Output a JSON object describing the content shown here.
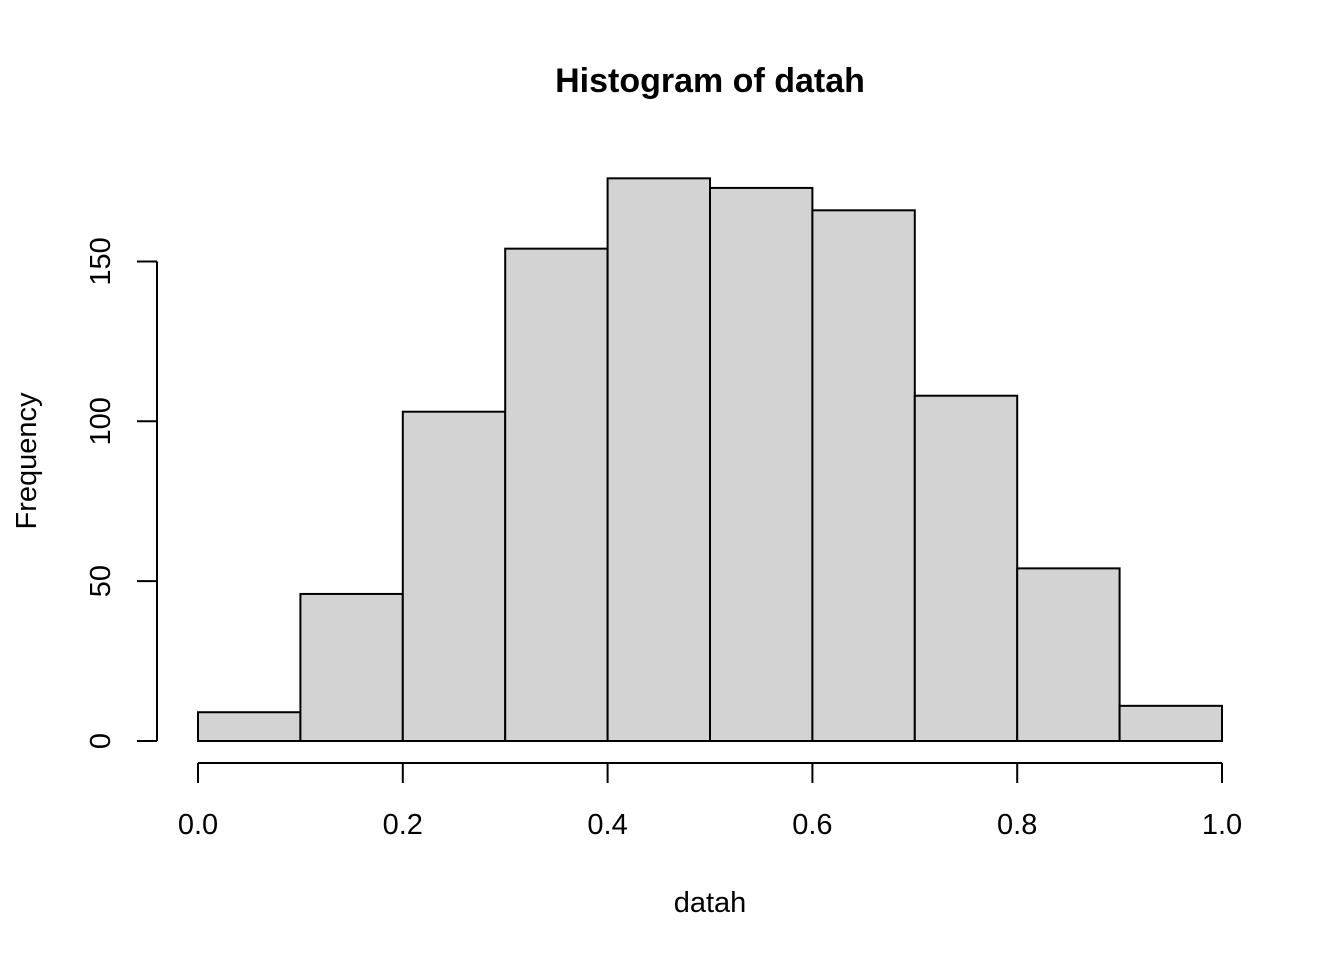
{
  "chart_data": {
    "type": "bar",
    "subtype": "histogram",
    "title": "Histogram of datah",
    "xlabel": "datah",
    "ylabel": "Frequency",
    "bin_edges": [
      0.0,
      0.1,
      0.2,
      0.3,
      0.4,
      0.5,
      0.6,
      0.7,
      0.8,
      0.9,
      1.0
    ],
    "values": [
      9,
      46,
      103,
      154,
      176,
      173,
      166,
      108,
      54,
      11
    ],
    "xlim": [
      0.0,
      1.0
    ],
    "ylim": [
      0,
      176
    ],
    "xticks": [
      0.0,
      0.2,
      0.4,
      0.6,
      0.8,
      1.0
    ],
    "xtick_labels": [
      "0.0",
      "0.2",
      "0.4",
      "0.6",
      "0.8",
      "1.0"
    ],
    "yticks": [
      0,
      50,
      100,
      150
    ],
    "ytick_labels": [
      "0",
      "50",
      "100",
      "150"
    ],
    "bar_color": "#d3d3d3",
    "grid": false,
    "legend": "none"
  }
}
